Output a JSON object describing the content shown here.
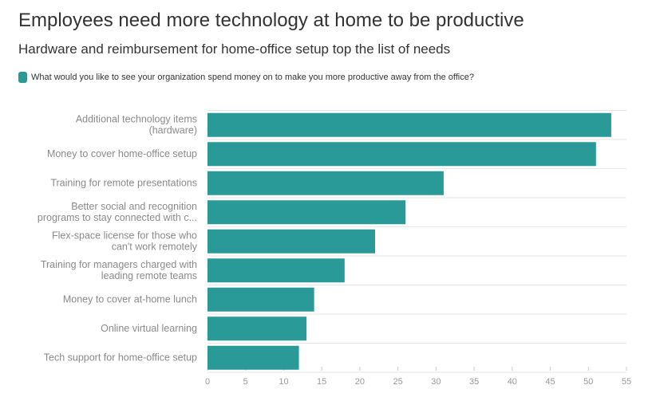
{
  "header": {
    "title": "Employees need more technology at home to be productive",
    "subtitle": "Hardware and reimbursement for home-office setup top the list of needs"
  },
  "colors": {
    "bar": "#2a9a98",
    "grid": "#e6e6e6",
    "axis": "#cccccc"
  },
  "chart_data": {
    "type": "bar",
    "orientation": "horizontal",
    "title": "Employees need more technology at home to be productive",
    "subtitle": "Hardware and reimbursement for home-office setup top the list of needs",
    "xlabel": "",
    "ylabel": "",
    "xlim": [
      0,
      55
    ],
    "xticks": [
      0,
      5,
      10,
      15,
      20,
      25,
      30,
      35,
      40,
      45,
      50,
      55
    ],
    "grid": true,
    "legend_position": "top-left",
    "series": [
      {
        "name": "What would you like to see your organization spend money on to make you more productive away from the office?",
        "values": [
          53,
          51,
          31,
          26,
          22,
          18,
          14,
          13,
          12
        ]
      }
    ],
    "categories": [
      [
        "Additional technology items",
        "(hardware)"
      ],
      [
        "Money to cover home-office setup"
      ],
      [
        "Training for remote presentations"
      ],
      [
        "Better social and recognition",
        "programs to stay connected with c..."
      ],
      [
        "Flex-space license for those who",
        "can't work remotely"
      ],
      [
        "Training for managers charged with",
        "leading remote teams"
      ],
      [
        "Money to cover at-home lunch"
      ],
      [
        "Online virtual learning"
      ],
      [
        "Tech support for home-office setup"
      ]
    ]
  }
}
